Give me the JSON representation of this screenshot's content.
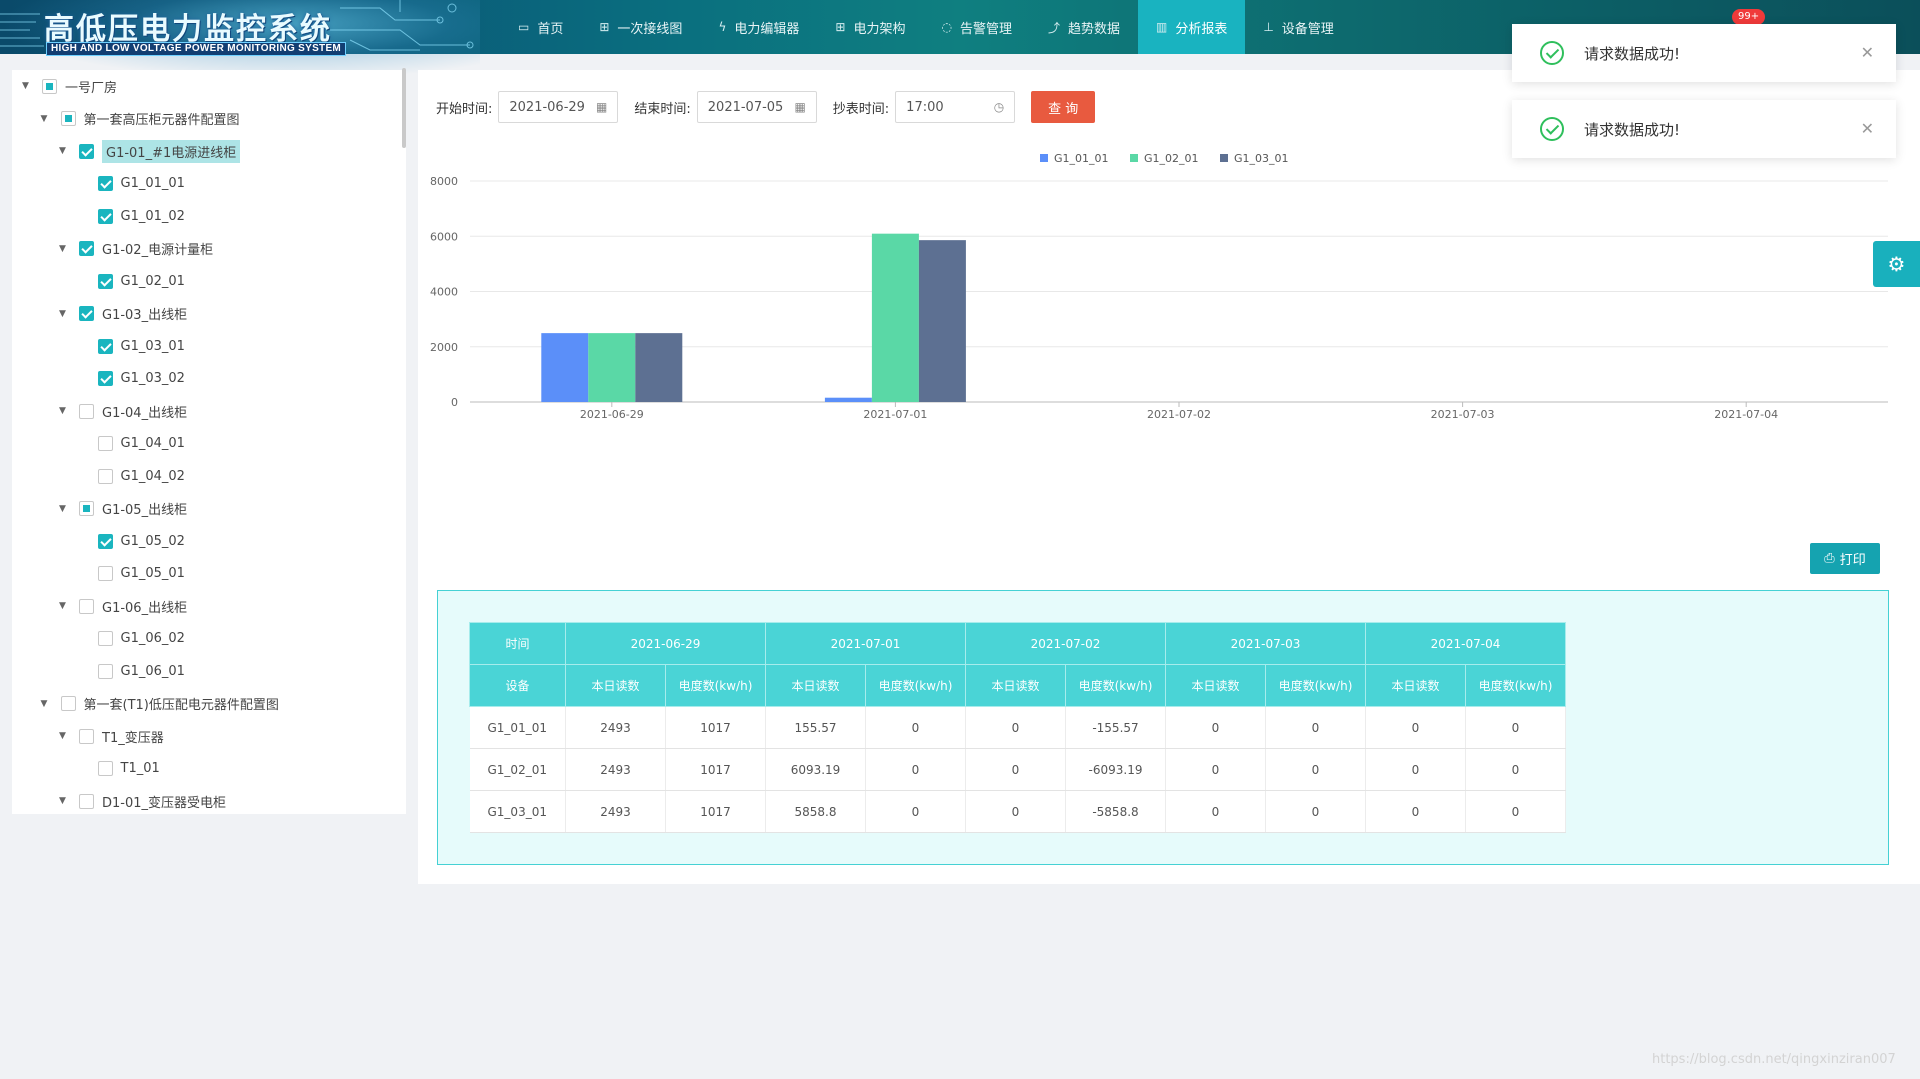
{
  "app": {
    "title": "高低压电力监控系统",
    "subtitle": "HIGH AND LOW VOLTAGE POWER MONITORING SYSTEM",
    "badge": "99+"
  },
  "nav": [
    {
      "label": "首页",
      "icon": "monitor-icon"
    },
    {
      "label": "一次接线图",
      "icon": "diagram-icon"
    },
    {
      "label": "电力编辑器",
      "icon": "lightning-icon"
    },
    {
      "label": "电力架构",
      "icon": "hierarchy-icon"
    },
    {
      "label": "告警管理",
      "icon": "alarm-icon"
    },
    {
      "label": "趋势数据",
      "icon": "trend-icon"
    },
    {
      "label": "分析报表",
      "icon": "bar-chart-icon",
      "active": true
    },
    {
      "label": "设备管理",
      "icon": "network-icon"
    }
  ],
  "tree": [
    {
      "label": "一号厂房",
      "level": 0,
      "state": "partial",
      "caret": true
    },
    {
      "label": "第一套高压柜元器件配置图",
      "level": 1,
      "state": "partial",
      "caret": true
    },
    {
      "label": "G1-01_#1电源进线柜",
      "level": 2,
      "state": "checked",
      "caret": true,
      "highlight": true
    },
    {
      "label": "G1_01_01",
      "level": 3,
      "state": "checked"
    },
    {
      "label": "G1_01_02",
      "level": 3,
      "state": "checked"
    },
    {
      "label": "G1-02_电源计量柜",
      "level": 2,
      "state": "checked",
      "caret": true
    },
    {
      "label": "G1_02_01",
      "level": 3,
      "state": "checked"
    },
    {
      "label": "G1-03_出线柜",
      "level": 2,
      "state": "checked",
      "caret": true
    },
    {
      "label": "G1_03_01",
      "level": 3,
      "state": "checked"
    },
    {
      "label": "G1_03_02",
      "level": 3,
      "state": "checked"
    },
    {
      "label": "G1-04_出线柜",
      "level": 2,
      "state": "unchecked",
      "caret": true
    },
    {
      "label": "G1_04_01",
      "level": 3,
      "state": "unchecked"
    },
    {
      "label": "G1_04_02",
      "level": 3,
      "state": "unchecked"
    },
    {
      "label": "G1-05_出线柜",
      "level": 2,
      "state": "partial",
      "caret": true
    },
    {
      "label": "G1_05_02",
      "level": 3,
      "state": "checked"
    },
    {
      "label": "G1_05_01",
      "level": 3,
      "state": "unchecked"
    },
    {
      "label": "G1-06_出线柜",
      "level": 2,
      "state": "unchecked",
      "caret": true
    },
    {
      "label": "G1_06_02",
      "level": 3,
      "state": "unchecked"
    },
    {
      "label": "G1_06_01",
      "level": 3,
      "state": "unchecked"
    },
    {
      "label": "第一套(T1)低压配电元器件配置图",
      "level": 1,
      "state": "unchecked",
      "caret": true
    },
    {
      "label": "T1_变压器",
      "level": 2,
      "state": "unchecked",
      "caret": true
    },
    {
      "label": "T1_01",
      "level": 3,
      "state": "unchecked"
    },
    {
      "label": "D1-01_变压器受电柜",
      "level": 2,
      "state": "unchecked",
      "caret": true
    }
  ],
  "filters": {
    "start_label": "开始时间:",
    "start_value": "2021-06-29",
    "end_label": "结束时间:",
    "end_value": "2021-07-05",
    "read_label": "抄表时间:",
    "read_value": "17:00",
    "query_label": "查 询"
  },
  "print_label": "打印",
  "toasts": [
    {
      "message": "请求数据成功!"
    },
    {
      "message": "请求数据成功!"
    }
  ],
  "chart_data": {
    "type": "bar",
    "categories": [
      "2021-06-29",
      "2021-07-01",
      "2021-07-02",
      "2021-07-03",
      "2021-07-04"
    ],
    "series": [
      {
        "name": "G1_01_01",
        "values": [
          2493,
          155.57,
          0,
          0,
          0
        ],
        "color": "#5b8ff9"
      },
      {
        "name": "G1_02_01",
        "values": [
          2493,
          6093.19,
          0,
          0,
          0
        ],
        "color": "#5ad8a6"
      },
      {
        "name": "G1_03_01",
        "values": [
          2493,
          5858.8,
          0,
          0,
          0
        ],
        "color": "#5d7092"
      }
    ],
    "yticks": [
      "0",
      "2000",
      "4000",
      "6000",
      "8000"
    ],
    "ylim": [
      0,
      8000
    ],
    "legend": "top-center",
    "grid": true
  },
  "table": {
    "corner_top": "时间",
    "corner_bottom": "设备",
    "dates": [
      "2021-06-29",
      "2021-07-01",
      "2021-07-02",
      "2021-07-03",
      "2021-07-04"
    ],
    "sub_headers": [
      "本日读数",
      "电度数(kw/h)"
    ],
    "rows": [
      {
        "device": "G1_01_01",
        "values": [
          "2493",
          "1017",
          "155.57",
          "0",
          "0",
          "-155.57",
          "0",
          "0",
          "0",
          "0"
        ]
      },
      {
        "device": "G1_02_01",
        "values": [
          "2493",
          "1017",
          "6093.19",
          "0",
          "0",
          "-6093.19",
          "0",
          "0",
          "0",
          "0"
        ]
      },
      {
        "device": "G1_03_01",
        "values": [
          "2493",
          "1017",
          "5858.8",
          "0",
          "0",
          "-5858.8",
          "0",
          "0",
          "0",
          "0"
        ]
      }
    ]
  },
  "watermark": "https://blog.csdn.net/qingxinziran007"
}
